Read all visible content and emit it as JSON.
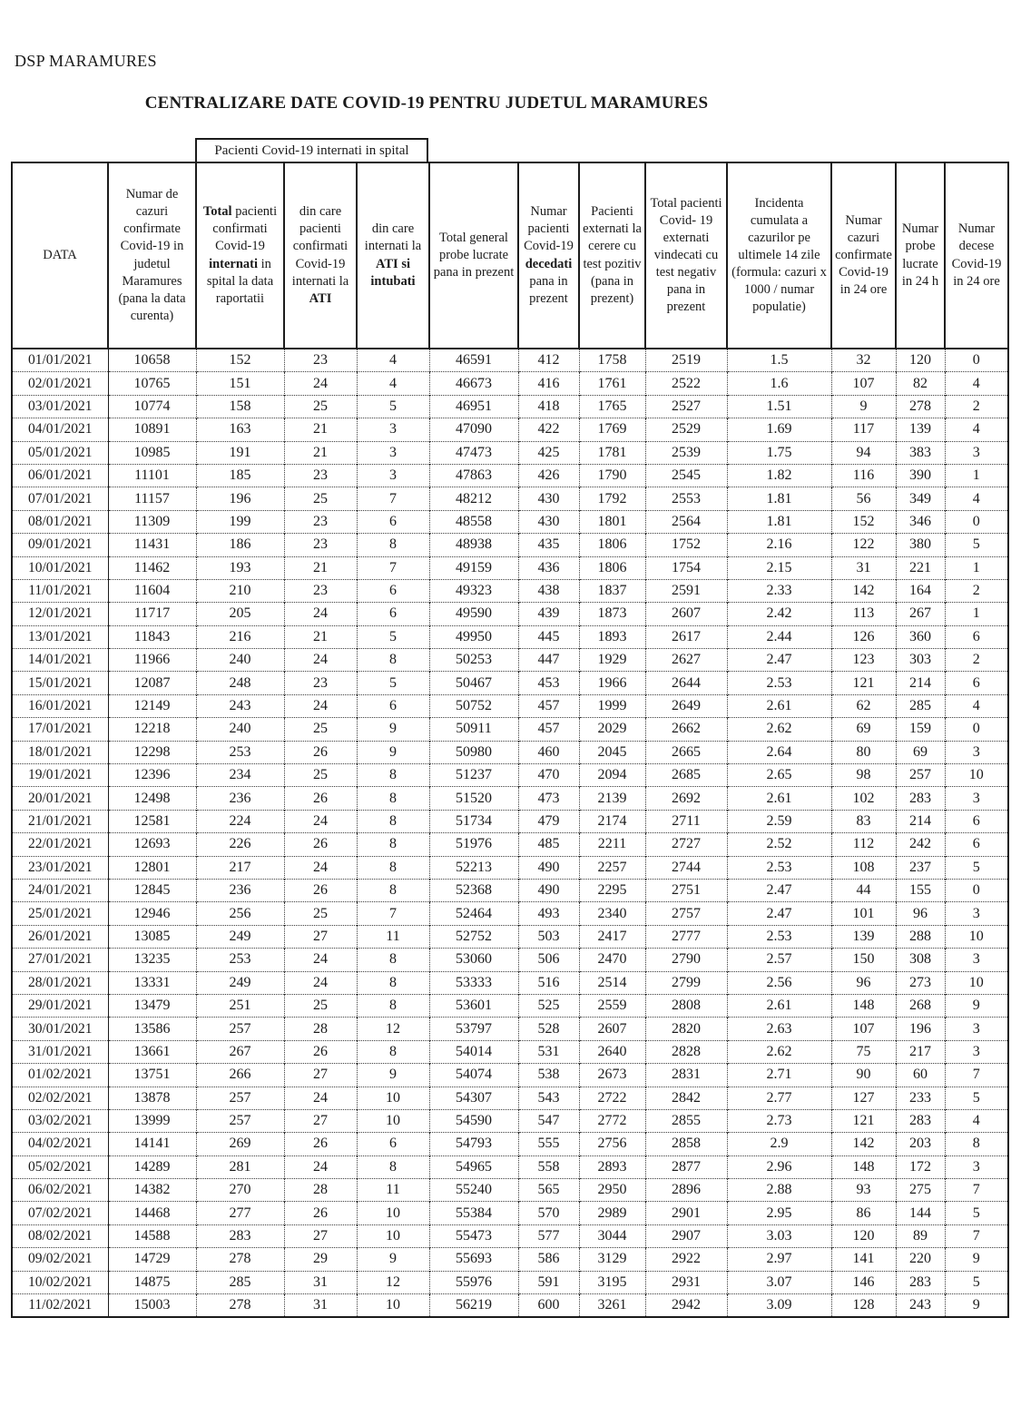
{
  "page": {
    "org": "DSP MARAMURES",
    "title": "CENTRALIZARE DATE COVID-19 PENTRU JUDETUL MARAMURES"
  },
  "colors": {
    "ink": "#1b1b1b",
    "paper": "#ffffff"
  },
  "table": {
    "group_header": "Pacienti Covid-19 internati in spital",
    "columns": [
      {
        "id": "data",
        "label": [
          {
            "t": "DATA",
            "b": false
          }
        ]
      },
      {
        "id": "cazuri-confirmate-total",
        "label": [
          {
            "t": "Numar de cazuri confirmate Covid-19 in judetul Maramures (pana la data curenta)",
            "b": false
          }
        ]
      },
      {
        "id": "internati-total",
        "label": [
          {
            "t": "Total",
            "b": true
          },
          {
            "t": " pacienti confirmati Covid-19 ",
            "b": false
          },
          {
            "t": "internati",
            "b": true
          },
          {
            "t": " in spital la data raportatii",
            "b": false
          }
        ]
      },
      {
        "id": "internati-ati",
        "label": [
          {
            "t": "din care pacienti confirmati Covid-19 internati la ",
            "b": false
          },
          {
            "t": "ATI",
            "b": true
          }
        ]
      },
      {
        "id": "ati-intubati",
        "label": [
          {
            "t": "din care internati la ",
            "b": false
          },
          {
            "t": "ATI si intubati",
            "b": true
          }
        ]
      },
      {
        "id": "probe-total",
        "label": [
          {
            "t": "Total general probe lucrate pana in prezent",
            "b": false
          }
        ]
      },
      {
        "id": "decedati-total",
        "label": [
          {
            "t": "Numar pacienti Covid-19 ",
            "b": false
          },
          {
            "t": "decedati",
            "b": true
          },
          {
            "t": " pana in prezent",
            "b": false
          }
        ]
      },
      {
        "id": "externati-cerere",
        "label": [
          {
            "t": "Pacienti externati la cerere cu test pozitiv (pana in prezent)",
            "b": false
          }
        ]
      },
      {
        "id": "externati-vindecati",
        "label": [
          {
            "t": "Total pacienti Covid- 19 externati vindecati cu test negativ pana in prezent",
            "b": false
          }
        ]
      },
      {
        "id": "incidenta-14-zile",
        "label": [
          {
            "t": "Incidenta cumulata a cazurilor pe ultimele 14 zile (formula: cazuri x 1000 / numar populatie)",
            "b": false
          }
        ]
      },
      {
        "id": "cazuri-24h",
        "label": [
          {
            "t": "Numar cazuri confirmate Covid-19 in 24 ore",
            "b": false
          }
        ]
      },
      {
        "id": "probe-24h",
        "label": [
          {
            "t": "Numar probe lucrate in 24 h",
            "b": false
          }
        ]
      },
      {
        "id": "decese-24h",
        "label": [
          {
            "t": "Numar decese Covid-19 in 24 ore",
            "b": false
          }
        ]
      }
    ],
    "rows": [
      [
        "01/01/2021",
        "10658",
        "152",
        "23",
        "4",
        "46591",
        "412",
        "1758",
        "2519",
        "1.5",
        "32",
        "120",
        "0"
      ],
      [
        "02/01/2021",
        "10765",
        "151",
        "24",
        "4",
        "46673",
        "416",
        "1761",
        "2522",
        "1.6",
        "107",
        "82",
        "4"
      ],
      [
        "03/01/2021",
        "10774",
        "158",
        "25",
        "5",
        "46951",
        "418",
        "1765",
        "2527",
        "1.51",
        "9",
        "278",
        "2"
      ],
      [
        "04/01/2021",
        "10891",
        "163",
        "21",
        "3",
        "47090",
        "422",
        "1769",
        "2529",
        "1.69",
        "117",
        "139",
        "4"
      ],
      [
        "05/01/2021",
        "10985",
        "191",
        "21",
        "3",
        "47473",
        "425",
        "1781",
        "2539",
        "1.75",
        "94",
        "383",
        "3"
      ],
      [
        "06/01/2021",
        "11101",
        "185",
        "23",
        "3",
        "47863",
        "426",
        "1790",
        "2545",
        "1.82",
        "116",
        "390",
        "1"
      ],
      [
        "07/01/2021",
        "11157",
        "196",
        "25",
        "7",
        "48212",
        "430",
        "1792",
        "2553",
        "1.81",
        "56",
        "349",
        "4"
      ],
      [
        "08/01/2021",
        "11309",
        "199",
        "23",
        "6",
        "48558",
        "430",
        "1801",
        "2564",
        "1.81",
        "152",
        "346",
        "0"
      ],
      [
        "09/01/2021",
        "11431",
        "186",
        "23",
        "8",
        "48938",
        "435",
        "1806",
        "1752",
        "2.16",
        "122",
        "380",
        "5"
      ],
      [
        "10/01/2021",
        "11462",
        "193",
        "21",
        "7",
        "49159",
        "436",
        "1806",
        "1754",
        "2.15",
        "31",
        "221",
        "1"
      ],
      [
        "11/01/2021",
        "11604",
        "210",
        "23",
        "6",
        "49323",
        "438",
        "1837",
        "2591",
        "2.33",
        "142",
        "164",
        "2"
      ],
      [
        "12/01/2021",
        "11717",
        "205",
        "24",
        "6",
        "49590",
        "439",
        "1873",
        "2607",
        "2.42",
        "113",
        "267",
        "1"
      ],
      [
        "13/01/2021",
        "11843",
        "216",
        "21",
        "5",
        "49950",
        "445",
        "1893",
        "2617",
        "2.44",
        "126",
        "360",
        "6"
      ],
      [
        "14/01/2021",
        "11966",
        "240",
        "24",
        "8",
        "50253",
        "447",
        "1929",
        "2627",
        "2.47",
        "123",
        "303",
        "2"
      ],
      [
        "15/01/2021",
        "12087",
        "248",
        "23",
        "5",
        "50467",
        "453",
        "1966",
        "2644",
        "2.53",
        "121",
        "214",
        "6"
      ],
      [
        "16/01/2021",
        "12149",
        "243",
        "24",
        "6",
        "50752",
        "457",
        "1999",
        "2649",
        "2.61",
        "62",
        "285",
        "4"
      ],
      [
        "17/01/2021",
        "12218",
        "240",
        "25",
        "9",
        "50911",
        "457",
        "2029",
        "2662",
        "2.62",
        "69",
        "159",
        "0"
      ],
      [
        "18/01/2021",
        "12298",
        "253",
        "26",
        "9",
        "50980",
        "460",
        "2045",
        "2665",
        "2.64",
        "80",
        "69",
        "3"
      ],
      [
        "19/01/2021",
        "12396",
        "234",
        "25",
        "8",
        "51237",
        "470",
        "2094",
        "2685",
        "2.65",
        "98",
        "257",
        "10"
      ],
      [
        "20/01/2021",
        "12498",
        "236",
        "26",
        "8",
        "51520",
        "473",
        "2139",
        "2692",
        "2.61",
        "102",
        "283",
        "3"
      ],
      [
        "21/01/2021",
        "12581",
        "224",
        "24",
        "8",
        "51734",
        "479",
        "2174",
        "2711",
        "2.59",
        "83",
        "214",
        "6"
      ],
      [
        "22/01/2021",
        "12693",
        "226",
        "26",
        "8",
        "51976",
        "485",
        "2211",
        "2727",
        "2.52",
        "112",
        "242",
        "6"
      ],
      [
        "23/01/2021",
        "12801",
        "217",
        "24",
        "8",
        "52213",
        "490",
        "2257",
        "2744",
        "2.53",
        "108",
        "237",
        "5"
      ],
      [
        "24/01/2021",
        "12845",
        "236",
        "26",
        "8",
        "52368",
        "490",
        "2295",
        "2751",
        "2.47",
        "44",
        "155",
        "0"
      ],
      [
        "25/01/2021",
        "12946",
        "256",
        "25",
        "7",
        "52464",
        "493",
        "2340",
        "2757",
        "2.47",
        "101",
        "96",
        "3"
      ],
      [
        "26/01/2021",
        "13085",
        "249",
        "27",
        "11",
        "52752",
        "503",
        "2417",
        "2777",
        "2.53",
        "139",
        "288",
        "10"
      ],
      [
        "27/01/2021",
        "13235",
        "253",
        "24",
        "8",
        "53060",
        "506",
        "2470",
        "2790",
        "2.57",
        "150",
        "308",
        "3"
      ],
      [
        "28/01/2021",
        "13331",
        "249",
        "24",
        "8",
        "53333",
        "516",
        "2514",
        "2799",
        "2.56",
        "96",
        "273",
        "10"
      ],
      [
        "29/01/2021",
        "13479",
        "251",
        "25",
        "8",
        "53601",
        "525",
        "2559",
        "2808",
        "2.61",
        "148",
        "268",
        "9"
      ],
      [
        "30/01/2021",
        "13586",
        "257",
        "28",
        "12",
        "53797",
        "528",
        "2607",
        "2820",
        "2.63",
        "107",
        "196",
        "3"
      ],
      [
        "31/01/2021",
        "13661",
        "267",
        "26",
        "8",
        "54014",
        "531",
        "2640",
        "2828",
        "2.62",
        "75",
        "217",
        "3"
      ],
      [
        "01/02/2021",
        "13751",
        "266",
        "27",
        "9",
        "54074",
        "538",
        "2673",
        "2831",
        "2.71",
        "90",
        "60",
        "7"
      ],
      [
        "02/02/2021",
        "13878",
        "257",
        "24",
        "10",
        "54307",
        "543",
        "2722",
        "2842",
        "2.77",
        "127",
        "233",
        "5"
      ],
      [
        "03/02/2021",
        "13999",
        "257",
        "27",
        "10",
        "54590",
        "547",
        "2772",
        "2855",
        "2.73",
        "121",
        "283",
        "4"
      ],
      [
        "04/02/2021",
        "14141",
        "269",
        "26",
        "6",
        "54793",
        "555",
        "2756",
        "2858",
        "2.9",
        "142",
        "203",
        "8"
      ],
      [
        "05/02/2021",
        "14289",
        "281",
        "24",
        "8",
        "54965",
        "558",
        "2893",
        "2877",
        "2.96",
        "148",
        "172",
        "3"
      ],
      [
        "06/02/2021",
        "14382",
        "270",
        "28",
        "11",
        "55240",
        "565",
        "2950",
        "2896",
        "2.88",
        "93",
        "275",
        "7"
      ],
      [
        "07/02/2021",
        "14468",
        "277",
        "26",
        "10",
        "55384",
        "570",
        "2989",
        "2901",
        "2.95",
        "86",
        "144",
        "5"
      ],
      [
        "08/02/2021",
        "14588",
        "283",
        "27",
        "10",
        "55473",
        "577",
        "3044",
        "2907",
        "3.03",
        "120",
        "89",
        "7"
      ],
      [
        "09/02/2021",
        "14729",
        "278",
        "29",
        "9",
        "55693",
        "586",
        "3129",
        "2922",
        "2.97",
        "141",
        "220",
        "9"
      ],
      [
        "10/02/2021",
        "14875",
        "285",
        "31",
        "12",
        "55976",
        "591",
        "3195",
        "2931",
        "3.07",
        "146",
        "283",
        "5"
      ],
      [
        "11/02/2021",
        "15003",
        "278",
        "31",
        "10",
        "56219",
        "600",
        "3261",
        "2942",
        "3.09",
        "128",
        "243",
        "9"
      ]
    ]
  }
}
